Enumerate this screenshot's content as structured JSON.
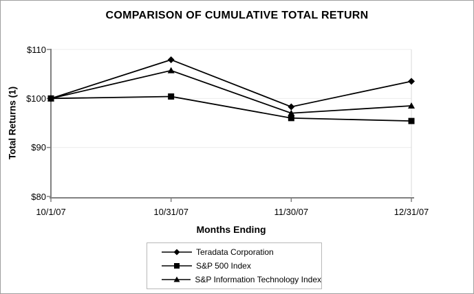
{
  "title": "COMPARISON OF CUMULATIVE TOTAL RETURN",
  "chart_data": {
    "type": "line",
    "x": [
      "10/1/07",
      "10/31/07",
      "11/30/07",
      "12/31/07"
    ],
    "xlabel": "Months Ending",
    "ylabel": "Total Returns (1)",
    "ylim": [
      80,
      110
    ],
    "yticks": [
      80,
      90,
      100,
      110
    ],
    "ytick_labels": [
      "$80",
      "$90",
      "$100",
      "$110"
    ],
    "grid": "horizontal-light",
    "legend_position": "bottom-center-boxed",
    "series": [
      {
        "name": "Teradata Corporation",
        "marker": "diamond",
        "color": "#000000",
        "values": [
          100,
          107.9,
          98.3,
          103.5
        ]
      },
      {
        "name": "S&P 500 Index",
        "marker": "square",
        "color": "#000000",
        "values": [
          100,
          100.4,
          96.0,
          95.4
        ]
      },
      {
        "name": "S&P Information Technology Index",
        "marker": "triangle",
        "color": "#000000",
        "values": [
          100,
          105.7,
          97.0,
          98.5
        ]
      }
    ]
  },
  "colors": {
    "series": "#000000",
    "axis": "#808080",
    "gridline": "#ececec",
    "plot_right_border": "#d9d9d9",
    "legend_border": "#b8b8b8",
    "frame_border": "#9e9e9e",
    "background": "#ffffff",
    "text": "#000000"
  }
}
